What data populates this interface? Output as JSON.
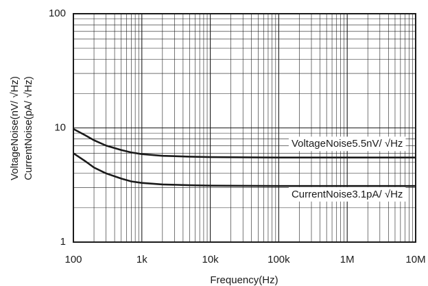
{
  "chart_data": {
    "type": "line",
    "xlabel": "Frequency(Hz)",
    "ylabel_lines": [
      "VoltageNoise(nV/   √Hz)",
      "CurrentNoise(pA/   √Hz)"
    ],
    "x_scale": "log",
    "y_scale": "log",
    "xlim": [
      100,
      10000000
    ],
    "ylim": [
      1,
      100
    ],
    "x_ticks": [
      {
        "value": 100,
        "label": "100"
      },
      {
        "value": 1000,
        "label": "1k"
      },
      {
        "value": 10000,
        "label": "10k"
      },
      {
        "value": 100000,
        "label": "100k"
      },
      {
        "value": 1000000,
        "label": "1M"
      },
      {
        "value": 10000000,
        "label": "10M"
      }
    ],
    "y_ticks": [
      {
        "value": 1,
        "label": "1"
      },
      {
        "value": 10,
        "label": "10"
      },
      {
        "value": 100,
        "label": "100"
      }
    ],
    "grid": true,
    "series": [
      {
        "x": [
          100,
          150,
          200,
          300,
          500,
          700,
          1000,
          2000,
          5000,
          10000,
          100000,
          1000000,
          10000000
        ],
        "values": [
          9.8,
          8.6,
          7.8,
          7.0,
          6.4,
          6.1,
          5.9,
          5.7,
          5.6,
          5.55,
          5.5,
          5.5,
          5.5
        ]
      },
      {
        "x": [
          100,
          150,
          200,
          300,
          500,
          700,
          1000,
          2000,
          5000,
          10000,
          100000,
          1000000,
          10000000
        ],
        "values": [
          6.0,
          5.1,
          4.5,
          4.0,
          3.6,
          3.4,
          3.3,
          3.2,
          3.15,
          3.12,
          3.1,
          3.1,
          3.1
        ]
      }
    ],
    "annotations": [
      {
        "text": "VoltageNoise5.5nV/   √Hz",
        "x": 1000000,
        "y": 7.2
      },
      {
        "text": "CurrentNoise3.1pA/   √Hz",
        "x": 1000000,
        "y": 2.6
      }
    ]
  }
}
